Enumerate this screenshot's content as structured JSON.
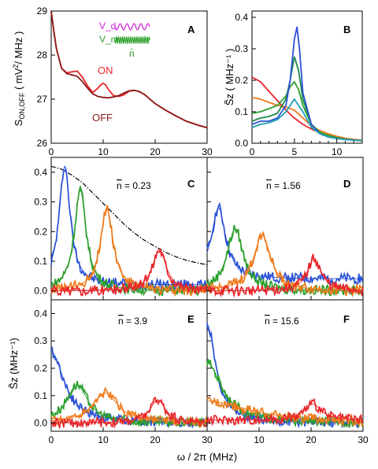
{
  "figure": {
    "xlabel_bottom": "ω / 2π (MHz)",
    "ylabel_CDEF": "S̃z (MHz⁻¹)"
  },
  "chart_data": [
    {
      "panel": "A",
      "type": "line",
      "xlabel": "",
      "ylabel": "S_ON,OFF ( mV² / MHz )",
      "ylabel_parts": [
        "S",
        "ON,OFF",
        " ( mV",
        "2",
        "/ MHz )"
      ],
      "xlim": [
        0,
        30
      ],
      "ylim": [
        26,
        29
      ],
      "xticks": [
        0,
        10,
        20,
        30
      ],
      "yticks": [
        26,
        27,
        28,
        29
      ],
      "grid": false,
      "annotations": [
        "ON",
        "OFF"
      ],
      "legend_labels": [
        "V_d",
        "V_m",
        "n̄"
      ],
      "series": [
        {
          "name": "ON",
          "color": "#e8262b",
          "x": [
            0,
            0.5,
            1,
            2,
            3,
            4,
            5,
            6,
            7,
            8,
            9,
            9.5,
            10,
            10.5,
            11,
            12,
            13,
            14,
            15,
            16,
            17,
            18,
            19,
            20,
            22,
            24,
            26,
            28,
            30
          ],
          "y": [
            29.0,
            28.55,
            28.15,
            27.7,
            27.6,
            27.62,
            27.64,
            27.5,
            27.3,
            27.15,
            27.25,
            27.32,
            27.36,
            27.32,
            27.22,
            27.08,
            27.06,
            27.1,
            27.18,
            27.2,
            27.17,
            27.1,
            27.0,
            26.9,
            26.75,
            26.62,
            26.5,
            26.42,
            26.35
          ]
        },
        {
          "name": "OFF",
          "color": "#8b1a1a",
          "x": [
            0,
            0.5,
            1,
            2,
            3,
            4,
            5,
            6,
            7,
            8,
            9,
            10,
            11,
            12,
            13,
            14,
            15,
            16,
            17,
            18,
            19,
            20,
            22,
            24,
            26,
            28,
            30
          ],
          "y": [
            29.0,
            28.55,
            28.15,
            27.7,
            27.58,
            27.55,
            27.52,
            27.4,
            27.25,
            27.12,
            27.06,
            27.04,
            27.03,
            27.05,
            27.08,
            27.14,
            27.19,
            27.2,
            27.17,
            27.1,
            27.0,
            26.9,
            26.75,
            26.62,
            26.5,
            26.42,
            26.35
          ]
        }
      ]
    },
    {
      "panel": "B",
      "type": "line",
      "xlabel": "",
      "ylabel": "S̃z ( MHz⁻¹ )",
      "xlim": [
        0,
        13
      ],
      "ylim": [
        0,
        0.42
      ],
      "xticks": [
        0,
        5,
        10
      ],
      "yticks": [
        0.0,
        0.1,
        0.2,
        0.3,
        0.4
      ],
      "grid": false,
      "series": [
        {
          "name": "",
          "color": "#e8262b",
          "x": [
            0,
            1,
            2,
            3,
            4,
            5,
            6,
            7,
            8,
            9,
            10,
            11,
            12,
            13
          ],
          "y": [
            0.21,
            0.195,
            0.165,
            0.135,
            0.105,
            0.08,
            0.06,
            0.045,
            0.033,
            0.025,
            0.018,
            0.013,
            0.01,
            0.008
          ]
        },
        {
          "name": "",
          "color": "#f07a1a",
          "x": [
            0,
            1,
            2,
            3,
            4,
            5,
            6,
            7,
            8,
            9,
            10,
            11,
            12,
            13
          ],
          "y": [
            0.145,
            0.14,
            0.13,
            0.12,
            0.115,
            0.105,
            0.08,
            0.055,
            0.04,
            0.03,
            0.022,
            0.016,
            0.012,
            0.01
          ]
        },
        {
          "name": "",
          "color": "#2ca02c",
          "x": [
            0,
            1,
            2,
            3,
            4,
            4.5,
            5,
            5.5,
            6,
            7,
            8,
            9,
            10,
            11,
            12,
            13
          ],
          "y": [
            0.095,
            0.1,
            0.11,
            0.12,
            0.15,
            0.18,
            0.195,
            0.17,
            0.12,
            0.06,
            0.035,
            0.025,
            0.018,
            0.013,
            0.01,
            0.008
          ]
        },
        {
          "name": "",
          "color": "#1e8a4c",
          "x": [
            0,
            1,
            2,
            3,
            4,
            4.5,
            5,
            5.5,
            6,
            7,
            8,
            9,
            10,
            11,
            12,
            13
          ],
          "y": [
            0.07,
            0.08,
            0.085,
            0.095,
            0.14,
            0.2,
            0.275,
            0.23,
            0.14,
            0.06,
            0.03,
            0.02,
            0.015,
            0.012,
            0.01,
            0.008
          ]
        },
        {
          "name": "",
          "color": "#2a52d6",
          "x": [
            0,
            1,
            2,
            3,
            4,
            4.5,
            5,
            5.3,
            5.6,
            6,
            7,
            8,
            9,
            10,
            11,
            12,
            13
          ],
          "y": [
            0.06,
            0.07,
            0.07,
            0.08,
            0.12,
            0.2,
            0.33,
            0.37,
            0.3,
            0.16,
            0.06,
            0.03,
            0.02,
            0.015,
            0.012,
            0.01,
            0.008
          ]
        },
        {
          "name": "",
          "color": "#20a0b0",
          "x": [
            0,
            1,
            2,
            3,
            4,
            5,
            6,
            7,
            8,
            9,
            10,
            11,
            12,
            13
          ],
          "y": [
            0.05,
            0.06,
            0.065,
            0.075,
            0.1,
            0.14,
            0.1,
            0.05,
            0.03,
            0.02,
            0.015,
            0.012,
            0.01,
            0.008
          ]
        }
      ]
    },
    {
      "panel": "C",
      "nbar": "= 0.23",
      "type": "line",
      "xlim": [
        0,
        30
      ],
      "ylim": [
        -0.03,
        0.45
      ],
      "yticks": [
        0.0,
        0.1,
        0.2,
        0.3,
        0.4
      ],
      "grid": false,
      "envelope": {
        "style": "dash-dot",
        "color": "#000000",
        "x": [
          0,
          2,
          4,
          6,
          8,
          10,
          12,
          14,
          16,
          18,
          20,
          22,
          24,
          26,
          28,
          30
        ],
        "y": [
          0.42,
          0.41,
          0.39,
          0.365,
          0.33,
          0.295,
          0.26,
          0.225,
          0.195,
          0.17,
          0.15,
          0.13,
          0.115,
          0.103,
          0.095,
          0.088
        ]
      },
      "series": [
        {
          "name": "",
          "color": "#2a52d6",
          "center": 2.6,
          "amp": 0.4,
          "width": 1.3,
          "base": 0.02
        },
        {
          "name": "",
          "color": "#2ca02c",
          "center": 5.6,
          "amp": 0.34,
          "width": 1.4,
          "base": 0.0
        },
        {
          "name": "",
          "color": "#f07a1a",
          "center": 10.7,
          "amp": 0.28,
          "width": 1.5,
          "base": 0.0
        },
        {
          "name": "",
          "color": "#e8262b",
          "center": 20.8,
          "amp": 0.14,
          "width": 1.6,
          "base": 0.0
        }
      ]
    },
    {
      "panel": "D",
      "nbar": "= 1.56",
      "type": "line",
      "xlim": [
        0,
        30
      ],
      "ylim": [
        -0.03,
        0.45
      ],
      "grid": false,
      "series": [
        {
          "name": "",
          "color": "#2a52d6",
          "center": 2.2,
          "amp": 0.24,
          "width": 1.7,
          "base": 0.04
        },
        {
          "name": "",
          "color": "#2ca02c",
          "center": 5.4,
          "amp": 0.21,
          "width": 1.9,
          "base": 0.0
        },
        {
          "name": "",
          "color": "#f07a1a",
          "center": 10.6,
          "amp": 0.19,
          "width": 2.0,
          "base": 0.0
        },
        {
          "name": "",
          "color": "#e8262b",
          "center": 20.6,
          "amp": 0.11,
          "width": 1.6,
          "base": 0.0
        }
      ]
    },
    {
      "panel": "E",
      "nbar": "= 3.9",
      "type": "line",
      "xlim": [
        0,
        30
      ],
      "ylim": [
        -0.03,
        0.45
      ],
      "xticks": [
        0,
        10,
        20,
        30
      ],
      "yticks": [
        0.0,
        0.1,
        0.2,
        0.3,
        0.4
      ],
      "grid": false,
      "series": [
        {
          "name": "",
          "color": "#2a52d6",
          "center": 0.0,
          "amp": 0.26,
          "width": 3.0,
          "base": 0.0
        },
        {
          "name": "",
          "color": "#2ca02c",
          "center": 5.0,
          "amp": 0.14,
          "width": 2.5,
          "base": 0.0
        },
        {
          "name": "",
          "color": "#f07a1a",
          "center": 10.4,
          "amp": 0.11,
          "width": 3.0,
          "base": 0.0
        },
        {
          "name": "",
          "color": "#e8262b",
          "center": 20.5,
          "amp": 0.085,
          "width": 1.8,
          "base": 0.0
        }
      ]
    },
    {
      "panel": "F",
      "nbar": "= 15.6",
      "type": "line",
      "xlim": [
        0,
        30
      ],
      "ylim": [
        -0.03,
        0.45
      ],
      "xticks": [
        0,
        10,
        20,
        30
      ],
      "grid": false,
      "series": [
        {
          "name": "",
          "color": "#2a52d6",
          "center": 0.0,
          "amp": 0.36,
          "width": 2.0,
          "base": 0.0
        },
        {
          "name": "",
          "color": "#2ca02c",
          "center": 0.0,
          "amp": 0.22,
          "width": 3.5,
          "base": 0.0
        },
        {
          "name": "",
          "color": "#f07a1a",
          "center": 0.0,
          "amp": 0.08,
          "width": 10.0,
          "base": 0.0
        },
        {
          "name": "",
          "color": "#e8262b",
          "center": 20.3,
          "amp": 0.06,
          "width": 2.0,
          "base": 0.01
        }
      ]
    }
  ]
}
